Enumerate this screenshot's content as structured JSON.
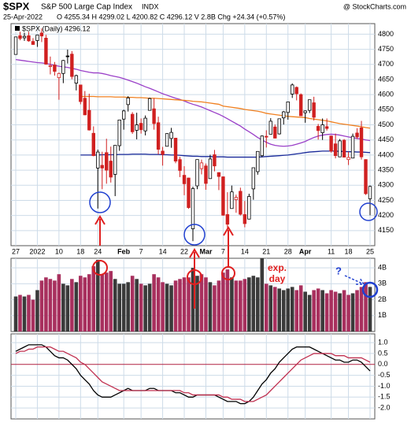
{
  "chart_data": {
    "type": "candlestick",
    "symbol": "$SPX",
    "name": "S&P 500 Large Cap Index",
    "exchange": "INDX",
    "source": "@ StockCharts.com",
    "date": "25-Apr-2022",
    "quote": "O 4255.34  H 4299.02  L 4200.82  C 4296.12  V 2.8B  Chg +24.34 (+0.57%)",
    "legend": "$SPX (Daily) 4296.12",
    "categories": [
      "27",
      null,
      null,
      null,
      null,
      "2022",
      null,
      null,
      null,
      null,
      "10",
      null,
      null,
      null,
      null,
      "18",
      null,
      null,
      null,
      "24",
      null,
      null,
      null,
      null,
      null,
      "Feb",
      null,
      null,
      null,
      "7",
      null,
      null,
      null,
      null,
      "14",
      null,
      null,
      null,
      null,
      "22",
      null,
      null,
      null,
      null,
      "Mar",
      null,
      null,
      null,
      "7",
      null,
      null,
      null,
      null,
      "14",
      null,
      null,
      null,
      null,
      "21",
      null,
      null,
      null,
      null,
      "28",
      null,
      null,
      null,
      "Apr",
      null,
      null,
      null,
      null,
      null,
      "11",
      null,
      null,
      null,
      "18",
      null,
      null,
      null,
      null,
      "25"
    ],
    "ohlc": [
      [
        4733,
        4792,
        4733,
        4791
      ],
      [
        4795,
        4808,
        4780,
        4786
      ],
      [
        4788,
        4805,
        4778,
        4793
      ],
      [
        4795,
        4808,
        4775,
        4778
      ],
      [
        4776,
        4787,
        4765,
        4766
      ],
      [
        4779,
        4797,
        4758,
        4797
      ],
      [
        4804,
        4819,
        4774,
        4794
      ],
      [
        4787,
        4798,
        4699,
        4701
      ],
      [
        4693,
        4726,
        4667,
        4696
      ],
      [
        4698,
        4708,
        4663,
        4677
      ],
      [
        4656,
        4673,
        4583,
        4670
      ],
      [
        4670,
        4715,
        4638,
        4713
      ],
      [
        4728,
        4749,
        4703,
        4726
      ],
      [
        4734,
        4744,
        4651,
        4660
      ],
      [
        4638,
        4666,
        4614,
        4663
      ],
      [
        4632,
        4632,
        4568,
        4577
      ],
      [
        4588,
        4612,
        4532,
        4533
      ],
      [
        4548,
        4603,
        4481,
        4483
      ],
      [
        4472,
        4495,
        4396,
        4398
      ],
      [
        4357,
        4418,
        4223,
        4410
      ],
      [
        4366,
        4411,
        4287,
        4357
      ],
      [
        4408,
        4454,
        4305,
        4350
      ],
      [
        4380,
        4428,
        4309,
        4327
      ],
      [
        4336,
        4432,
        4264,
        4432
      ],
      [
        4431,
        4516,
        4414,
        4516
      ],
      [
        4519,
        4550,
        4484,
        4546
      ],
      [
        4567,
        4595,
        4544,
        4589
      ],
      [
        4535,
        4542,
        4470,
        4477
      ],
      [
        4482,
        4540,
        4452,
        4500
      ],
      [
        4505,
        4521,
        4471,
        4484
      ],
      [
        4480,
        4531,
        4465,
        4522
      ],
      [
        4548,
        4590,
        4548,
        4587
      ],
      [
        4553,
        4588,
        4484,
        4504
      ],
      [
        4507,
        4527,
        4402,
        4419
      ],
      [
        4413,
        4427,
        4365,
        4402
      ],
      [
        4429,
        4472,
        4429,
        4471
      ],
      [
        4455,
        4490,
        4424,
        4475
      ],
      [
        4456,
        4456,
        4373,
        4380
      ],
      [
        4385,
        4394,
        4327,
        4349
      ],
      [
        4333,
        4363,
        4267,
        4305
      ],
      [
        4324,
        4325,
        4222,
        4226
      ],
      [
        4156,
        4295,
        4115,
        4289
      ],
      [
        4298,
        4385,
        4287,
        4385
      ],
      [
        4355,
        4385,
        4336,
        4374
      ],
      [
        4364,
        4372,
        4285,
        4306
      ],
      [
        4322,
        4401,
        4322,
        4387
      ],
      [
        4401,
        4417,
        4346,
        4364
      ],
      [
        4342,
        4343,
        4284,
        4329
      ],
      [
        4328,
        4329,
        4199,
        4201
      ],
      [
        4203,
        4277,
        4158,
        4171
      ],
      [
        4223,
        4299,
        4223,
        4278
      ],
      [
        4252,
        4269,
        4209,
        4260
      ],
      [
        4280,
        4292,
        4200,
        4204
      ],
      [
        4203,
        4248,
        4161,
        4173
      ],
      [
        4188,
        4272,
        4187,
        4263
      ],
      [
        4288,
        4358,
        4252,
        4358
      ],
      [
        4345,
        4412,
        4335,
        4412
      ],
      [
        4398,
        4465,
        4393,
        4463
      ],
      [
        4462,
        4482,
        4425,
        4461
      ],
      [
        4469,
        4522,
        4469,
        4512
      ],
      [
        4493,
        4501,
        4455,
        4456
      ],
      [
        4470,
        4521,
        4468,
        4520
      ],
      [
        4523,
        4546,
        4501,
        4543
      ],
      [
        4541,
        4576,
        4517,
        4576
      ],
      [
        4602,
        4637,
        4589,
        4632
      ],
      [
        4624,
        4627,
        4581,
        4603
      ],
      [
        4600,
        4604,
        4530,
        4530
      ],
      [
        4540,
        4548,
        4507,
        4546
      ],
      [
        4548,
        4583,
        4539,
        4583
      ],
      [
        4573,
        4593,
        4514,
        4525
      ],
      [
        4495,
        4503,
        4451,
        4481
      ],
      [
        4474,
        4521,
        4450,
        4500
      ],
      [
        4494,
        4521,
        4481,
        4488
      ],
      [
        4463,
        4464,
        4408,
        4413
      ],
      [
        4437,
        4471,
        4389,
        4398
      ],
      [
        4394,
        4453,
        4393,
        4447
      ],
      [
        4449,
        4453,
        4392,
        4393
      ],
      [
        4385,
        4411,
        4367,
        4392
      ],
      [
        4390,
        4471,
        4390,
        4462
      ],
      [
        4473,
        4489,
        4453,
        4460
      ],
      [
        4490,
        4513,
        4385,
        4394
      ],
      [
        4385,
        4386,
        4268,
        4272
      ],
      [
        4255.34,
        4299.02,
        4200.82,
        4296.12
      ]
    ],
    "up_color": "#000000",
    "down_color": "#d02020",
    "ylim": [
      4100,
      4835
    ],
    "yticks": [
      4150,
      4200,
      4250,
      4300,
      4350,
      4400,
      4450,
      4500,
      4550,
      4600,
      4650,
      4700,
      4750,
      4800
    ],
    "grid": true,
    "ma": [
      {
        "color": "#9a40c8",
        "values": [
          4716,
          4714,
          4712,
          4710,
          4708,
          4706,
          4705,
          4703,
          4700,
          4697,
          4694,
          4692,
          4690,
          4687,
          4684,
          4680,
          4677,
          4674,
          4672,
          4672,
          4670,
          4667,
          4663,
          4660,
          4657,
          4653,
          4648,
          4643,
          4638,
          4632,
          4626,
          4621,
          4615,
          4609,
          4603,
          4598,
          4593,
          4588,
          4584,
          4579,
          4573,
          4568,
          4564,
          4559,
          4553,
          4547,
          4541,
          4535,
          4528,
          4520,
          4512,
          4504,
          4496,
          4486,
          4477,
          4468,
          4458,
          4450,
          4442,
          4436,
          4432,
          4430,
          4429,
          4430,
          4432,
          4436,
          4440,
          4445,
          4452,
          4458,
          4463,
          4466,
          4468,
          4469,
          4468,
          4466,
          4463,
          4460,
          4457,
          4455,
          4453,
          4450,
          4448
        ]
      },
      {
        "color": "#f08020",
        "values": [
          null,
          null,
          null,
          null,
          null,
          null,
          null,
          null,
          null,
          null,
          null,
          null,
          null,
          null,
          null,
          4594,
          4594,
          4594,
          4594,
          4593,
          4593,
          4593,
          4593,
          4592,
          4592,
          4592,
          4591,
          4591,
          4590,
          4590,
          4589,
          4588,
          4588,
          4587,
          4586,
          4585,
          4584,
          4583,
          4582,
          4581,
          4580,
          4578,
          4577,
          4576,
          4574,
          4572,
          4570,
          4568,
          4562,
          4560,
          4558,
          4556,
          4554,
          4551,
          4549,
          4547,
          4545,
          4542,
          4538,
          4536,
          4534,
          4532,
          4530,
          4528,
          4527,
          4526,
          4525,
          4524,
          4521,
          4519,
          4517,
          4515,
          4513,
          4510,
          4507,
          4504,
          4502,
          4500,
          4498,
          4496,
          4494,
          4491,
          4489
        ]
      },
      {
        "color": "#1a2a9a",
        "values": [
          null,
          null,
          null,
          null,
          null,
          null,
          null,
          null,
          null,
          null,
          null,
          null,
          null,
          null,
          null,
          4400,
          4400,
          4400,
          4400,
          4400,
          4401,
          4401,
          4401,
          4401,
          4402,
          4402,
          4402,
          4403,
          4403,
          4403,
          4403,
          4402,
          4402,
          4402,
          4401,
          4401,
          4400,
          4400,
          4399,
          4398,
          4397,
          4396,
          4396,
          4395,
          4395,
          4395,
          4394,
          4394,
          4394,
          4393,
          4393,
          4393,
          4393,
          4393,
          4393,
          4393,
          4393,
          4394,
          4395,
          4396,
          4397,
          4398,
          4399,
          4400,
          4402,
          4404,
          4406,
          4408,
          4410,
          4411,
          4412,
          4413,
          4413,
          4413,
          4413,
          4412,
          4412,
          4411,
          4411,
          4410,
          4410,
          4409,
          4408
        ]
      }
    ],
    "volume": {
      "values": [
        2.2,
        2.3,
        2.2,
        2.3,
        2.0,
        2.6,
        3.2,
        3.4,
        3.3,
        3.2,
        3.6,
        3.0,
        2.9,
        3.3,
        3.1,
        3.5,
        3.4,
        3.6,
        4.1,
        4.5,
        3.6,
        3.7,
        3.8,
        3.3,
        3.0,
        3.0,
        3.1,
        3.5,
        3.3,
        3.0,
        2.9,
        3.0,
        3.6,
        3.4,
        3.1,
        3.0,
        2.9,
        3.2,
        3.3,
        3.4,
        3.4,
        4.0,
        3.5,
        3.6,
        3.4,
        3.1,
        2.9,
        3.2,
        3.7,
        3.9,
        3.4,
        3.2,
        3.2,
        3.3,
        3.4,
        3.5,
        3.4,
        4.6,
        3.0,
        2.9,
        2.8,
        2.7,
        2.6,
        2.7,
        2.8,
        2.6,
        2.9,
        2.5,
        2.3,
        2.6,
        2.7,
        2.6,
        2.4,
        2.6,
        2.5,
        2.4,
        2.6,
        2.3,
        2.4,
        2.6,
        2.8,
        3.1,
        2.8
      ],
      "up_color": "#3a3a3a",
      "down_color": "#a8305e",
      "ylim": [
        0,
        4.6
      ],
      "yticks": [
        {
          "value": 1,
          "label": "1B"
        },
        {
          "value": 2,
          "label": "2B"
        },
        {
          "value": 3,
          "label": "3B"
        },
        {
          "value": 4,
          "label": "4B"
        }
      ]
    },
    "indicator": {
      "ylim": [
        -2.5,
        1.4
      ],
      "yticks": [
        {
          "value": 1,
          "label": "1.0"
        },
        0.5,
        {
          "value": 0,
          "label": "0.0"
        },
        -0.5,
        {
          "value": -1,
          "label": "-1.0"
        },
        -1.5,
        {
          "value": -2,
          "label": "-2.0"
        }
      ],
      "zero_color": "#b02040",
      "series": [
        {
          "color": "#000000",
          "values": [
            0.6,
            0.7,
            0.8,
            0.9,
            0.9,
            0.9,
            0.9,
            0.8,
            0.6,
            0.4,
            0.3,
            0.3,
            0.2,
            0.0,
            -0.2,
            -0.5,
            -0.7,
            -0.9,
            -1.2,
            -1.4,
            -1.5,
            -1.5,
            -1.5,
            -1.4,
            -1.3,
            -1.2,
            -1.1,
            -1.2,
            -1.2,
            -1.2,
            -1.2,
            -1.1,
            -1.1,
            -1.2,
            -1.2,
            -1.2,
            -1.2,
            -1.3,
            -1.3,
            -1.4,
            -1.5,
            -1.5,
            -1.4,
            -1.4,
            -1.4,
            -1.4,
            -1.4,
            -1.5,
            -1.6,
            -1.7,
            -1.7,
            -1.7,
            -1.8,
            -1.8,
            -1.7,
            -1.5,
            -1.2,
            -0.9,
            -0.7,
            -0.4,
            -0.2,
            0.1,
            0.3,
            0.5,
            0.7,
            0.8,
            0.8,
            0.8,
            0.8,
            0.7,
            0.6,
            0.5,
            0.4,
            0.3,
            0.2,
            0.2,
            0.1,
            0.1,
            0.2,
            0.2,
            0.1,
            -0.1,
            -0.3
          ]
        },
        {
          "color": "#c03050",
          "values": [
            0.5,
            0.6,
            0.6,
            0.7,
            0.7,
            0.8,
            0.8,
            0.8,
            0.8,
            0.7,
            0.6,
            0.6,
            0.5,
            0.4,
            0.3,
            0.1,
            0.0,
            -0.2,
            -0.4,
            -0.6,
            -0.8,
            -0.9,
            -1.0,
            -1.1,
            -1.2,
            -1.2,
            -1.2,
            -1.2,
            -1.2,
            -1.2,
            -1.2,
            -1.2,
            -1.2,
            -1.2,
            -1.2,
            -1.2,
            -1.2,
            -1.2,
            -1.2,
            -1.3,
            -1.3,
            -1.4,
            -1.4,
            -1.4,
            -1.4,
            -1.4,
            -1.4,
            -1.4,
            -1.5,
            -1.5,
            -1.6,
            -1.6,
            -1.6,
            -1.7,
            -1.7,
            -1.7,
            -1.6,
            -1.5,
            -1.4,
            -1.2,
            -1.0,
            -0.8,
            -0.6,
            -0.4,
            -0.2,
            0.0,
            0.2,
            0.3,
            0.4,
            0.5,
            0.5,
            0.5,
            0.5,
            0.5,
            0.4,
            0.4,
            0.4,
            0.3,
            0.3,
            0.3,
            0.3,
            0.2,
            0.1
          ]
        }
      ]
    },
    "annotations": {
      "exp": "exp.",
      "day": "day",
      "question": "?"
    }
  }
}
